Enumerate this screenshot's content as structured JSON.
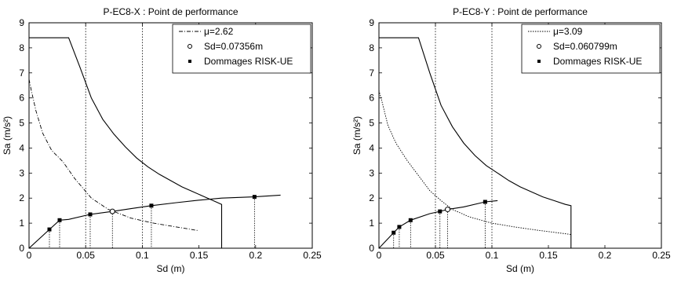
{
  "chart_data": [
    {
      "type": "line",
      "title": "P-EC8-X : Point de performance",
      "xlabel": "Sd (m)",
      "ylabel": "Sa (m/s²)",
      "xlim": [
        0,
        0.25
      ],
      "ylim": [
        0,
        9
      ],
      "xticks": [
        "0",
        "0.05",
        "0.1",
        "0.15",
        "0.2",
        "0.25"
      ],
      "yticks": [
        "0",
        "1",
        "2",
        "3",
        "4",
        "5",
        "6",
        "7",
        "8",
        "9"
      ],
      "grid": "dotted at x = 0.05 and 0.1 only",
      "legend_position": "top-right",
      "legend": [
        "μ=2.62",
        "Sd=0.07356m",
        "Dommages RISK-UE"
      ],
      "series": [
        {
          "name": "",
          "style": "solid",
          "points": [
            [
              0.0,
              8.4
            ],
            [
              0.035,
              8.4
            ],
            [
              0.045,
              7.22
            ],
            [
              0.055,
              6.0
            ],
            [
              0.065,
              5.15
            ],
            [
              0.075,
              4.55
            ],
            [
              0.085,
              4.05
            ],
            [
              0.095,
              3.6
            ],
            [
              0.105,
              3.25
            ],
            [
              0.115,
              2.95
            ],
            [
              0.125,
              2.7
            ],
            [
              0.135,
              2.45
            ],
            [
              0.145,
              2.25
            ],
            [
              0.155,
              2.05
            ],
            [
              0.165,
              1.85
            ],
            [
              0.17,
              1.75
            ],
            [
              0.17,
              0.0
            ]
          ]
        },
        {
          "name": "μ=2.62",
          "style": "dashdot",
          "points": [
            [
              0.0,
              6.75
            ],
            [
              0.002,
              6.3
            ],
            [
              0.006,
              5.5
            ],
            [
              0.012,
              4.6
            ],
            [
              0.02,
              3.9
            ],
            [
              0.03,
              3.45
            ],
            [
              0.04,
              2.8
            ],
            [
              0.055,
              2.0
            ],
            [
              0.07,
              1.55
            ],
            [
              0.09,
              1.2
            ],
            [
              0.11,
              1.0
            ],
            [
              0.13,
              0.85
            ],
            [
              0.15,
              0.7
            ]
          ]
        },
        {
          "name": "",
          "style": "solid",
          "points": [
            [
              0.0,
              0.0
            ],
            [
              0.018,
              0.75
            ],
            [
              0.027,
              1.12
            ],
            [
              0.035,
              1.15
            ],
            [
              0.054,
              1.35
            ],
            [
              0.074,
              1.47
            ],
            [
              0.09,
              1.58
            ],
            [
              0.108,
              1.7
            ],
            [
              0.13,
              1.82
            ],
            [
              0.15,
              1.92
            ],
            [
              0.17,
              2.0
            ],
            [
              0.199,
              2.05
            ],
            [
              0.222,
              2.12
            ]
          ]
        }
      ],
      "performance_point": {
        "name": "Sd=0.07356m",
        "x": 0.0736,
        "y": 1.47
      },
      "damage_points": [
        [
          0.018,
          0.75
        ],
        [
          0.027,
          1.12
        ],
        [
          0.054,
          1.35
        ],
        [
          0.108,
          1.7
        ],
        [
          0.199,
          2.05
        ]
      ]
    },
    {
      "type": "line",
      "title": "P-EC8-Y : Point de performance",
      "xlabel": "Sd (m)",
      "ylabel": "Sa (m/s²)",
      "xlim": [
        0,
        0.25
      ],
      "ylim": [
        0,
        9
      ],
      "xticks": [
        "0",
        "0.05",
        "0.1",
        "0.15",
        "0.2",
        "0.25"
      ],
      "yticks": [
        "0",
        "1",
        "2",
        "3",
        "4",
        "5",
        "6",
        "7",
        "8",
        "9"
      ],
      "grid": "dotted at x = 0.05 and 0.1 only",
      "legend_position": "top-right",
      "legend": [
        "μ=3.09",
        "Sd=0.060799m",
        "Dommages RISK-UE"
      ],
      "series": [
        {
          "name": "",
          "style": "solid",
          "points": [
            [
              0.0,
              8.4
            ],
            [
              0.035,
              8.4
            ],
            [
              0.045,
              7.0
            ],
            [
              0.055,
              5.7
            ],
            [
              0.065,
              4.85
            ],
            [
              0.075,
              4.2
            ],
            [
              0.085,
              3.7
            ],
            [
              0.095,
              3.3
            ],
            [
              0.105,
              3.0
            ],
            [
              0.115,
              2.7
            ],
            [
              0.125,
              2.45
            ],
            [
              0.135,
              2.25
            ],
            [
              0.145,
              2.05
            ],
            [
              0.155,
              1.9
            ],
            [
              0.165,
              1.75
            ],
            [
              0.17,
              1.7
            ],
            [
              0.17,
              0.0
            ]
          ]
        },
        {
          "name": "μ=3.09",
          "style": "dotted",
          "points": [
            [
              0.0,
              6.3
            ],
            [
              0.003,
              5.8
            ],
            [
              0.008,
              4.9
            ],
            [
              0.015,
              4.2
            ],
            [
              0.025,
              3.5
            ],
            [
              0.035,
              2.9
            ],
            [
              0.045,
              2.3
            ],
            [
              0.055,
              1.9
            ],
            [
              0.065,
              1.55
            ],
            [
              0.08,
              1.25
            ],
            [
              0.1,
              1.0
            ],
            [
              0.12,
              0.85
            ],
            [
              0.14,
              0.72
            ],
            [
              0.17,
              0.55
            ]
          ]
        },
        {
          "name": "",
          "style": "solid",
          "points": [
            [
              0.0,
              0.0
            ],
            [
              0.013,
              0.62
            ],
            [
              0.018,
              0.85
            ],
            [
              0.028,
              1.12
            ],
            [
              0.045,
              1.38
            ],
            [
              0.054,
              1.47
            ],
            [
              0.061,
              1.55
            ],
            [
              0.075,
              1.65
            ],
            [
              0.094,
              1.85
            ],
            [
              0.105,
              1.9
            ]
          ]
        }
      ],
      "performance_point": {
        "name": "Sd=0.060799m",
        "x": 0.0608,
        "y": 1.55
      },
      "damage_points": [
        [
          0.013,
          0.62
        ],
        [
          0.018,
          0.85
        ],
        [
          0.028,
          1.12
        ],
        [
          0.054,
          1.47
        ],
        [
          0.094,
          1.85
        ]
      ]
    }
  ]
}
